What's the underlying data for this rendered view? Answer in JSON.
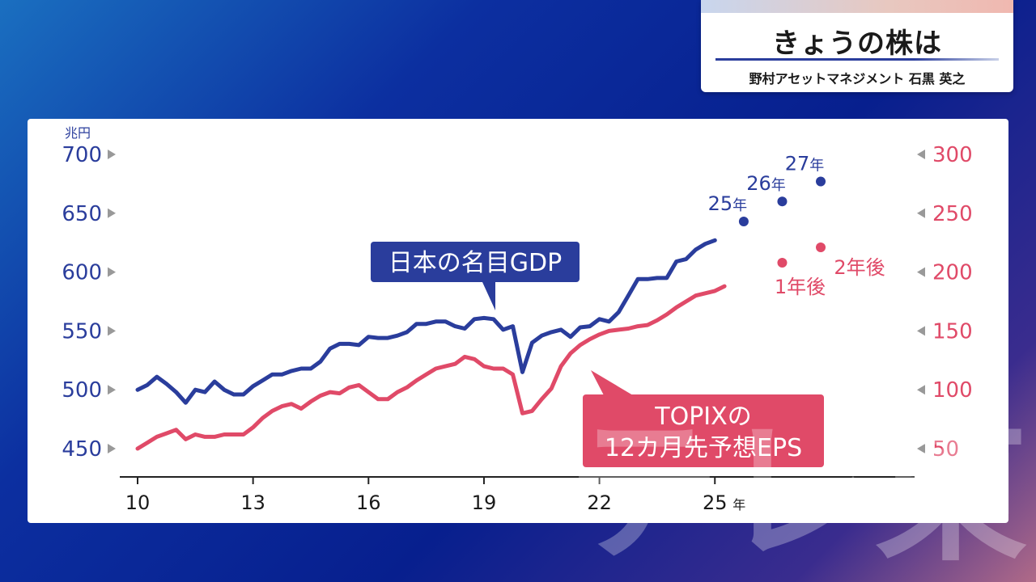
{
  "header": {
    "title": "きょうの株は",
    "speaker": "野村アセットマネジメント 石黒 英之"
  },
  "chart_data": {
    "type": "line",
    "xlabel": "",
    "x_unit": "年",
    "x_ticks": [
      "10",
      "13",
      "16",
      "19",
      "22",
      "25"
    ],
    "xlim": [
      2010,
      2030
    ],
    "y_left": {
      "unit": "兆円",
      "ticks": [
        450,
        500,
        550,
        600,
        650,
        700
      ],
      "range": [
        450,
        700
      ],
      "color": "#2a3d9c"
    },
    "y_right": {
      "ticks": [
        50,
        100,
        150,
        200,
        250,
        300
      ],
      "range": [
        50,
        300
      ],
      "color": "#e04a68"
    },
    "series": [
      {
        "name": "日本の名目GDP",
        "axis": "left",
        "color": "#2a3d9c",
        "x": [
          2010.0,
          2010.25,
          2010.5,
          2010.75,
          2011.0,
          2011.25,
          2011.5,
          2011.75,
          2012.0,
          2012.25,
          2012.5,
          2012.75,
          2013.0,
          2013.25,
          2013.5,
          2013.75,
          2014.0,
          2014.25,
          2014.5,
          2014.75,
          2015.0,
          2015.25,
          2015.5,
          2015.75,
          2016.0,
          2016.25,
          2016.5,
          2016.75,
          2017.0,
          2017.25,
          2017.5,
          2017.75,
          2018.0,
          2018.25,
          2018.5,
          2018.75,
          2019.0,
          2019.25,
          2019.5,
          2019.75,
          2020.0,
          2020.25,
          2020.5,
          2020.75,
          2021.0,
          2021.25,
          2021.5,
          2021.75,
          2022.0,
          2022.25,
          2022.5,
          2022.75,
          2023.0,
          2023.25,
          2023.5,
          2023.75,
          2024.0,
          2024.25,
          2024.5,
          2024.75,
          2025.0
        ],
        "values": [
          500,
          504,
          511,
          505,
          498,
          489,
          500,
          498,
          507,
          500,
          496,
          496,
          503,
          508,
          513,
          513,
          516,
          518,
          518,
          524,
          535,
          539,
          539,
          538,
          545,
          544,
          544,
          546,
          549,
          556,
          556,
          558,
          558,
          554,
          552,
          560,
          561,
          560,
          551,
          554,
          515,
          540,
          546,
          549,
          551,
          545,
          553,
          554,
          560,
          558,
          566,
          580,
          594,
          594,
          595,
          595,
          609,
          611,
          619,
          624,
          627
        ]
      },
      {
        "name": "TOPIXの 12カ月先予想EPS",
        "axis": "right",
        "color": "#e04a68",
        "x": [
          2010.0,
          2010.25,
          2010.5,
          2010.75,
          2011.0,
          2011.25,
          2011.5,
          2011.75,
          2012.0,
          2012.25,
          2012.5,
          2012.75,
          2013.0,
          2013.25,
          2013.5,
          2013.75,
          2014.0,
          2014.25,
          2014.5,
          2014.75,
          2015.0,
          2015.25,
          2015.5,
          2015.75,
          2016.0,
          2016.25,
          2016.5,
          2016.75,
          2017.0,
          2017.25,
          2017.5,
          2017.75,
          2018.0,
          2018.25,
          2018.5,
          2018.75,
          2019.0,
          2019.25,
          2019.5,
          2019.75,
          2020.0,
          2020.25,
          2020.5,
          2020.75,
          2021.0,
          2021.25,
          2021.5,
          2021.75,
          2022.0,
          2022.25,
          2022.5,
          2022.75,
          2023.0,
          2023.25,
          2023.5,
          2023.75,
          2024.0,
          2024.25,
          2024.5,
          2024.75,
          2025.0,
          2025.25
        ],
        "values": [
          50,
          55,
          60,
          63,
          66,
          58,
          62,
          60,
          60,
          62,
          62,
          62,
          68,
          76,
          82,
          86,
          88,
          84,
          90,
          95,
          98,
          97,
          102,
          104,
          98,
          92,
          92,
          98,
          102,
          108,
          113,
          118,
          120,
          122,
          128,
          126,
          120,
          118,
          118,
          113,
          80,
          82,
          92,
          101,
          120,
          131,
          138,
          143,
          147,
          150,
          151,
          152,
          154,
          155,
          159,
          164,
          170,
          175,
          180,
          182,
          184,
          188
        ]
      }
    ],
    "forecast_gdp": [
      {
        "label": "25年",
        "x": 2025.75,
        "value": 643
      },
      {
        "label": "26年",
        "x": 2026.75,
        "value": 660
      },
      {
        "label": "27年",
        "x": 2027.75,
        "value": 677
      }
    ],
    "forecast_eps": [
      {
        "label": "1年後",
        "x": 2026.75,
        "value": 208
      },
      {
        "label": "2年後",
        "x": 2027.75,
        "value": 221
      }
    ],
    "callouts": {
      "gdp": "日本の名目GDP",
      "eps_line1": "TOPIXの",
      "eps_line2": "12カ月先予想EPS"
    }
  }
}
